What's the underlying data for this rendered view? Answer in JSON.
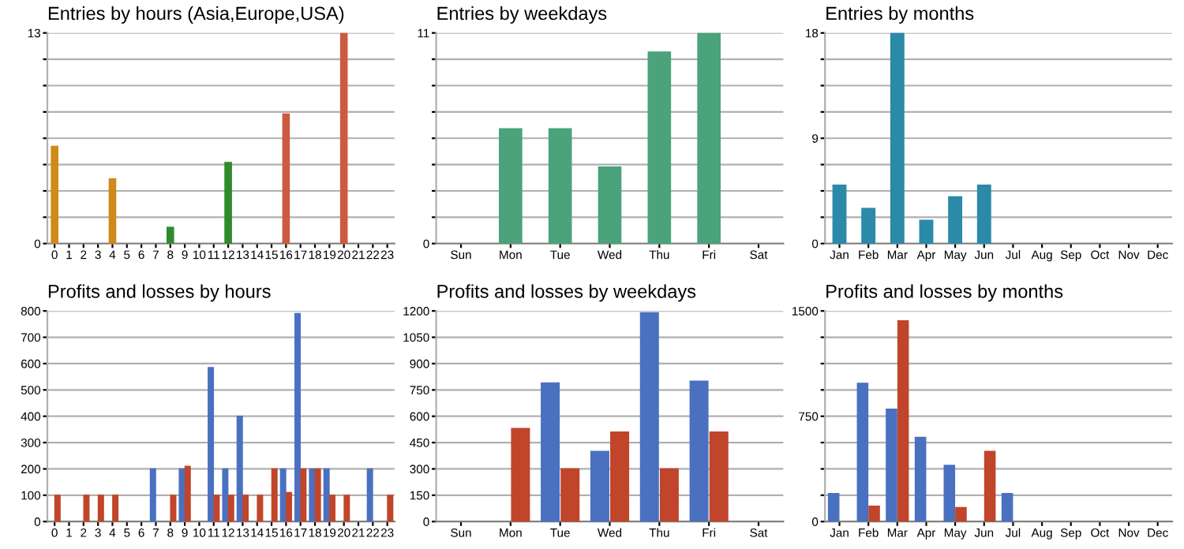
{
  "chart_data": [
    {
      "type": "bar",
      "title": "Entries by hours (Asia,Europe,USA)",
      "categories": [
        "0",
        "1",
        "2",
        "3",
        "4",
        "5",
        "6",
        "7",
        "8",
        "9",
        "10",
        "11",
        "12",
        "13",
        "14",
        "15",
        "16",
        "17",
        "18",
        "19",
        "20",
        "21",
        "22",
        "23"
      ],
      "values": [
        6,
        null,
        null,
        null,
        4,
        null,
        null,
        null,
        1,
        null,
        null,
        null,
        5,
        null,
        null,
        null,
        8,
        null,
        null,
        null,
        13,
        null,
        null,
        null
      ],
      "colors": [
        "#d08a1a",
        null,
        null,
        null,
        "#d08a1a",
        null,
        null,
        null,
        "#2e8b2e",
        null,
        null,
        null,
        "#2e8b2e",
        null,
        null,
        null,
        "#cc5a40",
        null,
        null,
        null,
        "#cc5a40",
        null,
        null,
        null
      ],
      "ylim": [
        0,
        13
      ],
      "yticks": [
        0,
        {
          "value": 1.625,
          "label": null
        },
        {
          "value": 3.25,
          "label": null
        },
        {
          "value": 4.875,
          "label": null
        },
        {
          "value": 6.5,
          "label": null
        },
        {
          "value": 8.125,
          "label": null
        },
        {
          "value": 9.75,
          "label": null
        },
        {
          "value": 11.375,
          "label": null
        },
        13
      ],
      "grid": "y"
    },
    {
      "type": "bar",
      "title": "Entries by weekdays",
      "categories": [
        "Sun",
        "Mon",
        "Tue",
        "Wed",
        "Thu",
        "Fri",
        "Sat"
      ],
      "values": [
        null,
        6,
        6,
        4,
        10,
        11,
        null
      ],
      "color": "#4aa37a",
      "ylim": [
        0,
        11
      ],
      "yticks": [
        0,
        {
          "value": 1.375,
          "label": null
        },
        {
          "value": 2.75,
          "label": null
        },
        {
          "value": 4.125,
          "label": null
        },
        {
          "value": 5.5,
          "label": null
        },
        {
          "value": 6.875,
          "label": null
        },
        {
          "value": 8.25,
          "label": null
        },
        {
          "value": 9.625,
          "label": null
        },
        11
      ],
      "grid": "y"
    },
    {
      "type": "bar",
      "title": "Entries by months",
      "categories": [
        "Jan",
        "Feb",
        "Mar",
        "Apr",
        "May",
        "Jun",
        "Jul",
        "Aug",
        "Sep",
        "Oct",
        "Nov",
        "Dec"
      ],
      "values": [
        5,
        3,
        18,
        2,
        4,
        5,
        null,
        null,
        null,
        null,
        null,
        null
      ],
      "color": "#2a8aa8",
      "ylim": [
        0,
        18
      ],
      "yticks": [
        0,
        {
          "value": 2.25,
          "label": null
        },
        {
          "value": 4.5,
          "label": null
        },
        {
          "value": 6.75,
          "label": null
        },
        9,
        {
          "value": 11.25,
          "label": null
        },
        {
          "value": 13.5,
          "label": null
        },
        {
          "value": 15.75,
          "label": null
        },
        18
      ],
      "grid": "y"
    },
    {
      "type": "bar",
      "title": "Profits and losses by hours",
      "categories": [
        "0",
        "1",
        "2",
        "3",
        "4",
        "5",
        "6",
        "7",
        "8",
        "9",
        "10",
        "11",
        "12",
        "13",
        "14",
        "15",
        "16",
        "17",
        "18",
        "19",
        "20",
        "21",
        "22",
        "23"
      ],
      "series": [
        {
          "color": "#4a70c0",
          "values": [
            null,
            null,
            null,
            null,
            null,
            null,
            null,
            200,
            null,
            200,
            null,
            585,
            200,
            400,
            null,
            null,
            200,
            790,
            200,
            200,
            null,
            null,
            200,
            null
          ]
        },
        {
          "color": "#c0452a",
          "values": [
            100,
            null,
            100,
            100,
            100,
            null,
            null,
            null,
            100,
            210,
            null,
            100,
            100,
            100,
            100,
            200,
            110,
            200,
            200,
            100,
            100,
            null,
            null,
            100
          ]
        }
      ],
      "ylim": [
        0,
        800
      ],
      "yticks": [
        0,
        100,
        200,
        300,
        400,
        500,
        600,
        700,
        800
      ],
      "grid": "y"
    },
    {
      "type": "bar",
      "title": "Profits and losses by weekdays",
      "categories": [
        "Sun",
        "Mon",
        "Tue",
        "Wed",
        "Thu",
        "Fri",
        "Sat"
      ],
      "series": [
        {
          "color": "#4a70c0",
          "values": [
            null,
            null,
            790,
            400,
            1190,
            800,
            null
          ]
        },
        {
          "color": "#c0452a",
          "values": [
            null,
            530,
            300,
            510,
            300,
            510,
            null
          ]
        }
      ],
      "ylim": [
        0,
        1200
      ],
      "yticks": [
        0,
        150,
        300,
        450,
        600,
        750,
        900,
        1050,
        1200
      ],
      "grid": "y"
    },
    {
      "type": "bar",
      "title": "Profits and losses by months",
      "categories": [
        "Jan",
        "Feb",
        "Mar",
        "Apr",
        "May",
        "Jun",
        "Jul",
        "Aug",
        "Sep",
        "Oct",
        "Nov",
        "Dec"
      ],
      "series": [
        {
          "color": "#4a70c0",
          "values": [
            200,
            985,
            800,
            600,
            400,
            null,
            200,
            null,
            null,
            null,
            null,
            null
          ]
        },
        {
          "color": "#c0452a",
          "values": [
            null,
            110,
            1430,
            null,
            100,
            500,
            null,
            null,
            null,
            null,
            null,
            null
          ]
        }
      ],
      "ylim": [
        0,
        1500
      ],
      "yticks": [
        0,
        {
          "value": 187.5,
          "label": null
        },
        {
          "value": 375,
          "label": null
        },
        {
          "value": 562.5,
          "label": null
        },
        750,
        {
          "value": 937.5,
          "label": null
        },
        {
          "value": 1125,
          "label": null
        },
        {
          "value": 1312.5,
          "label": null
        },
        1500
      ],
      "grid": "y"
    }
  ]
}
